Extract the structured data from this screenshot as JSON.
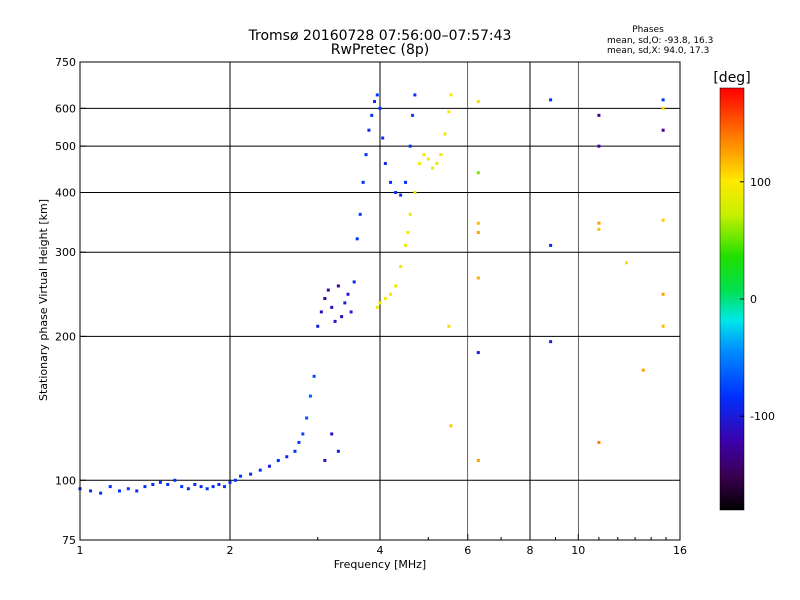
{
  "chart_data": {
    "type": "scatter",
    "title": "Tromsø 20160728 07:56:00–07:57:43",
    "subtitle": "RwPretec (8p)",
    "phases_info": {
      "heading": "Phases",
      "line_o": "mean, sd,O: -93.8, 16.3",
      "line_x": "mean, sd,X:  94.0, 17.3"
    },
    "xlabel": "Frequency [MHz]",
    "ylabel": "Stationary phase Virtual Height [km]",
    "x_scale": "log",
    "y_scale": "log",
    "xlim": [
      1,
      16
    ],
    "ylim": [
      75,
      750
    ],
    "x_ticks": [
      1,
      2,
      4,
      6,
      8,
      10,
      16
    ],
    "y_ticks": [
      75,
      100,
      200,
      300,
      400,
      500,
      600,
      750
    ],
    "x_major_grid": [
      2,
      4,
      8
    ],
    "x_minor_grid": [
      6,
      10,
      16
    ],
    "y_grid": [
      100,
      200,
      300,
      400,
      500,
      600
    ],
    "grid": true,
    "colorbar": {
      "label": "[deg]",
      "range": [
        -180,
        180
      ],
      "ticks": [
        100,
        0,
        -100
      ]
    },
    "series": [
      {
        "description_trace": "O-mode (low-phase, blue/purple) trace",
        "points": [
          [
            1.0,
            96,
            -100
          ],
          [
            1.05,
            95,
            -105
          ],
          [
            1.1,
            94,
            -100
          ],
          [
            1.15,
            97,
            -100
          ],
          [
            1.2,
            95,
            -102
          ],
          [
            1.25,
            96,
            -98
          ],
          [
            1.3,
            95,
            -105
          ],
          [
            1.35,
            97,
            -100
          ],
          [
            1.4,
            98,
            -102
          ],
          [
            1.45,
            99,
            -100
          ],
          [
            1.5,
            98,
            -104
          ],
          [
            1.55,
            100,
            -100
          ],
          [
            1.6,
            97,
            -98
          ],
          [
            1.65,
            96,
            -105
          ],
          [
            1.7,
            98,
            -100
          ],
          [
            1.75,
            97,
            -103
          ],
          [
            1.8,
            96,
            -100
          ],
          [
            1.85,
            97,
            -102
          ],
          [
            1.9,
            98,
            -100
          ],
          [
            1.95,
            97,
            -99
          ],
          [
            2.0,
            99,
            -104
          ],
          [
            2.05,
            100,
            -100
          ],
          [
            2.1,
            102,
            -98
          ],
          [
            2.2,
            103,
            -105
          ],
          [
            2.3,
            105,
            -100
          ],
          [
            2.4,
            107,
            -110
          ],
          [
            2.5,
            110,
            -100
          ],
          [
            2.6,
            112,
            -105
          ],
          [
            2.7,
            115,
            -100
          ],
          [
            2.75,
            120,
            -95
          ],
          [
            2.8,
            125,
            -90
          ],
          [
            2.85,
            135,
            -85
          ],
          [
            2.9,
            150,
            -80
          ],
          [
            2.95,
            165,
            -90
          ],
          [
            3.0,
            210,
            -110
          ],
          [
            3.05,
            225,
            -120
          ],
          [
            3.1,
            240,
            -130
          ],
          [
            3.15,
            250,
            -125
          ],
          [
            3.2,
            230,
            -120
          ],
          [
            3.25,
            215,
            -115
          ],
          [
            3.3,
            255,
            -130
          ],
          [
            3.35,
            220,
            -120
          ],
          [
            3.4,
            235,
            -110
          ],
          [
            3.45,
            245,
            -115
          ],
          [
            3.5,
            225,
            -110
          ],
          [
            3.55,
            260,
            -105
          ],
          [
            3.6,
            320,
            -100
          ],
          [
            3.65,
            360,
            -95
          ],
          [
            3.7,
            420,
            -100
          ],
          [
            3.75,
            480,
            -100
          ],
          [
            3.8,
            540,
            -105
          ],
          [
            3.85,
            580,
            -100
          ],
          [
            3.9,
            620,
            -100
          ],
          [
            3.95,
            640,
            -95
          ],
          [
            4.0,
            600,
            -100
          ],
          [
            4.05,
            520,
            -100
          ],
          [
            4.1,
            460,
            -105
          ],
          [
            4.2,
            420,
            -100
          ],
          [
            4.3,
            400,
            -100
          ],
          [
            4.4,
            395,
            -105
          ],
          [
            4.5,
            420,
            -100
          ],
          [
            4.6,
            500,
            -100
          ],
          [
            4.65,
            580,
            -95
          ],
          [
            4.7,
            640,
            -100
          ],
          [
            3.3,
            115,
            -110
          ],
          [
            3.2,
            125,
            -120
          ],
          [
            3.1,
            110,
            -115
          ],
          [
            6.3,
            185,
            -110
          ],
          [
            8.8,
            310,
            -105
          ],
          [
            8.8,
            195,
            -110
          ],
          [
            8.8,
            625,
            -100
          ],
          [
            11.0,
            580,
            -130
          ],
          [
            11.0,
            500,
            -125
          ],
          [
            14.8,
            540,
            -130
          ],
          [
            14.8,
            625,
            -100
          ]
        ]
      },
      {
        "description_trace": "X-mode (high-phase, yellow) trace",
        "points": [
          [
            3.95,
            230,
            100
          ],
          [
            4.0,
            235,
            95
          ],
          [
            4.1,
            240,
            100
          ],
          [
            4.2,
            245,
            98
          ],
          [
            4.3,
            255,
            100
          ],
          [
            4.4,
            280,
            100
          ],
          [
            4.5,
            310,
            95
          ],
          [
            4.55,
            330,
            100
          ],
          [
            4.6,
            360,
            100
          ],
          [
            4.7,
            400,
            95
          ],
          [
            4.8,
            460,
            100
          ],
          [
            4.9,
            480,
            105
          ],
          [
            5.0,
            470,
            100
          ],
          [
            5.1,
            450,
            95
          ],
          [
            5.2,
            460,
            100
          ],
          [
            5.3,
            480,
            100
          ],
          [
            5.4,
            530,
            95
          ],
          [
            5.5,
            590,
            100
          ],
          [
            5.55,
            640,
            100
          ],
          [
            5.5,
            210,
            110
          ],
          [
            5.55,
            130,
            115
          ],
          [
            6.3,
            620,
            110
          ],
          [
            6.3,
            440,
            60
          ],
          [
            6.3,
            345,
            120
          ],
          [
            6.3,
            330,
            130
          ],
          [
            6.3,
            265,
            125
          ],
          [
            6.3,
            110,
            130
          ],
          [
            11.0,
            345,
            130
          ],
          [
            11.0,
            335,
            120
          ],
          [
            11.0,
            120,
            140
          ],
          [
            12.5,
            285,
            110
          ],
          [
            13.5,
            170,
            130
          ],
          [
            14.8,
            350,
            115
          ],
          [
            14.8,
            245,
            130
          ],
          [
            14.8,
            210,
            120
          ],
          [
            14.8,
            600,
            110
          ]
        ]
      }
    ]
  }
}
